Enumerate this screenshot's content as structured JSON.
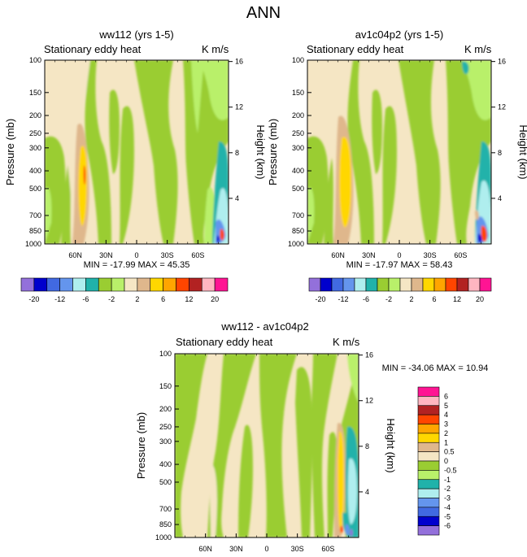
{
  "title": "ANN",
  "chart_data": [
    {
      "type": "contour",
      "title": "ww112 (yrs 1-5)",
      "subtitle_left": "Stationary eddy heat",
      "subtitle_right": "K m/s",
      "ylabel": "Pressure (mb)",
      "ylabel_right": "Height (km)",
      "pressure_ticks": [
        "100",
        "150",
        "200",
        "250",
        "300",
        "400",
        "500",
        "700",
        "850",
        "1000"
      ],
      "height_ticks": [
        "16",
        "12",
        "8",
        "4"
      ],
      "lat_ticks": [
        "60N",
        "30N",
        "0",
        "30S",
        "60S"
      ],
      "min_max": "MIN = -17.99   MAX =  45.35",
      "colorbar_labels": [
        "-20",
        "-12",
        "-6",
        "-2",
        "2",
        "6",
        "12",
        "20"
      ]
    },
    {
      "type": "contour",
      "title": "av1c04p2 (yrs 1-5)",
      "subtitle_left": "Stationary eddy heat",
      "subtitle_right": "K m/s",
      "ylabel": "Pressure (mb)",
      "ylabel_right": "Height (km)",
      "pressure_ticks": [
        "100",
        "150",
        "200",
        "250",
        "300",
        "400",
        "500",
        "700",
        "850",
        "1000"
      ],
      "height_ticks": [
        "16",
        "12",
        "8",
        "4"
      ],
      "lat_ticks": [
        "60N",
        "30N",
        "0",
        "30S",
        "60S"
      ],
      "min_max": "MIN = -17.97   MAX =  58.43",
      "colorbar_labels": [
        "-20",
        "-12",
        "-6",
        "-2",
        "2",
        "6",
        "12",
        "20"
      ]
    },
    {
      "type": "contour",
      "title": "ww112 - av1c04p2",
      "subtitle_left": "Stationary eddy heat",
      "subtitle_right": "K m/s",
      "ylabel": "Pressure (mb)",
      "ylabel_right": "Height (km)",
      "pressure_ticks": [
        "100",
        "150",
        "200",
        "250",
        "300",
        "400",
        "500",
        "700",
        "850",
        "1000"
      ],
      "height_ticks": [
        "16",
        "12",
        "8",
        "4"
      ],
      "lat_ticks": [
        "60N",
        "30N",
        "0",
        "30S",
        "60S"
      ],
      "min_max": "MIN = -34.06   MAX =  10.94",
      "colorbar_labels": [
        "6",
        "5",
        "4",
        "3",
        "2",
        "1",
        "0.5",
        "0",
        "-0.5",
        "-1",
        "-2",
        "-3",
        "-4",
        "-5",
        "-6"
      ]
    }
  ],
  "colors": {
    "main_scale": [
      "#9370db",
      "#0000cd",
      "#4169e1",
      "#6495ed",
      "#afeeee",
      "#20b2aa",
      "#9acd32",
      "#b9f06a",
      "#f5e6c4",
      "#dfb78c",
      "#ffd700",
      "#ffa500",
      "#ff4500",
      "#b22222",
      "#ffb6c1",
      "#ff1493"
    ],
    "diff_scale": [
      "#ff1493",
      "#ffb6c1",
      "#b22222",
      "#ff4500",
      "#ffa500",
      "#ffd700",
      "#dfb78c",
      "#f5e6c4",
      "#9acd32",
      "#b9f06a",
      "#20b2aa",
      "#afeeee",
      "#6495ed",
      "#4169e1",
      "#0000cd",
      "#9370db"
    ]
  }
}
